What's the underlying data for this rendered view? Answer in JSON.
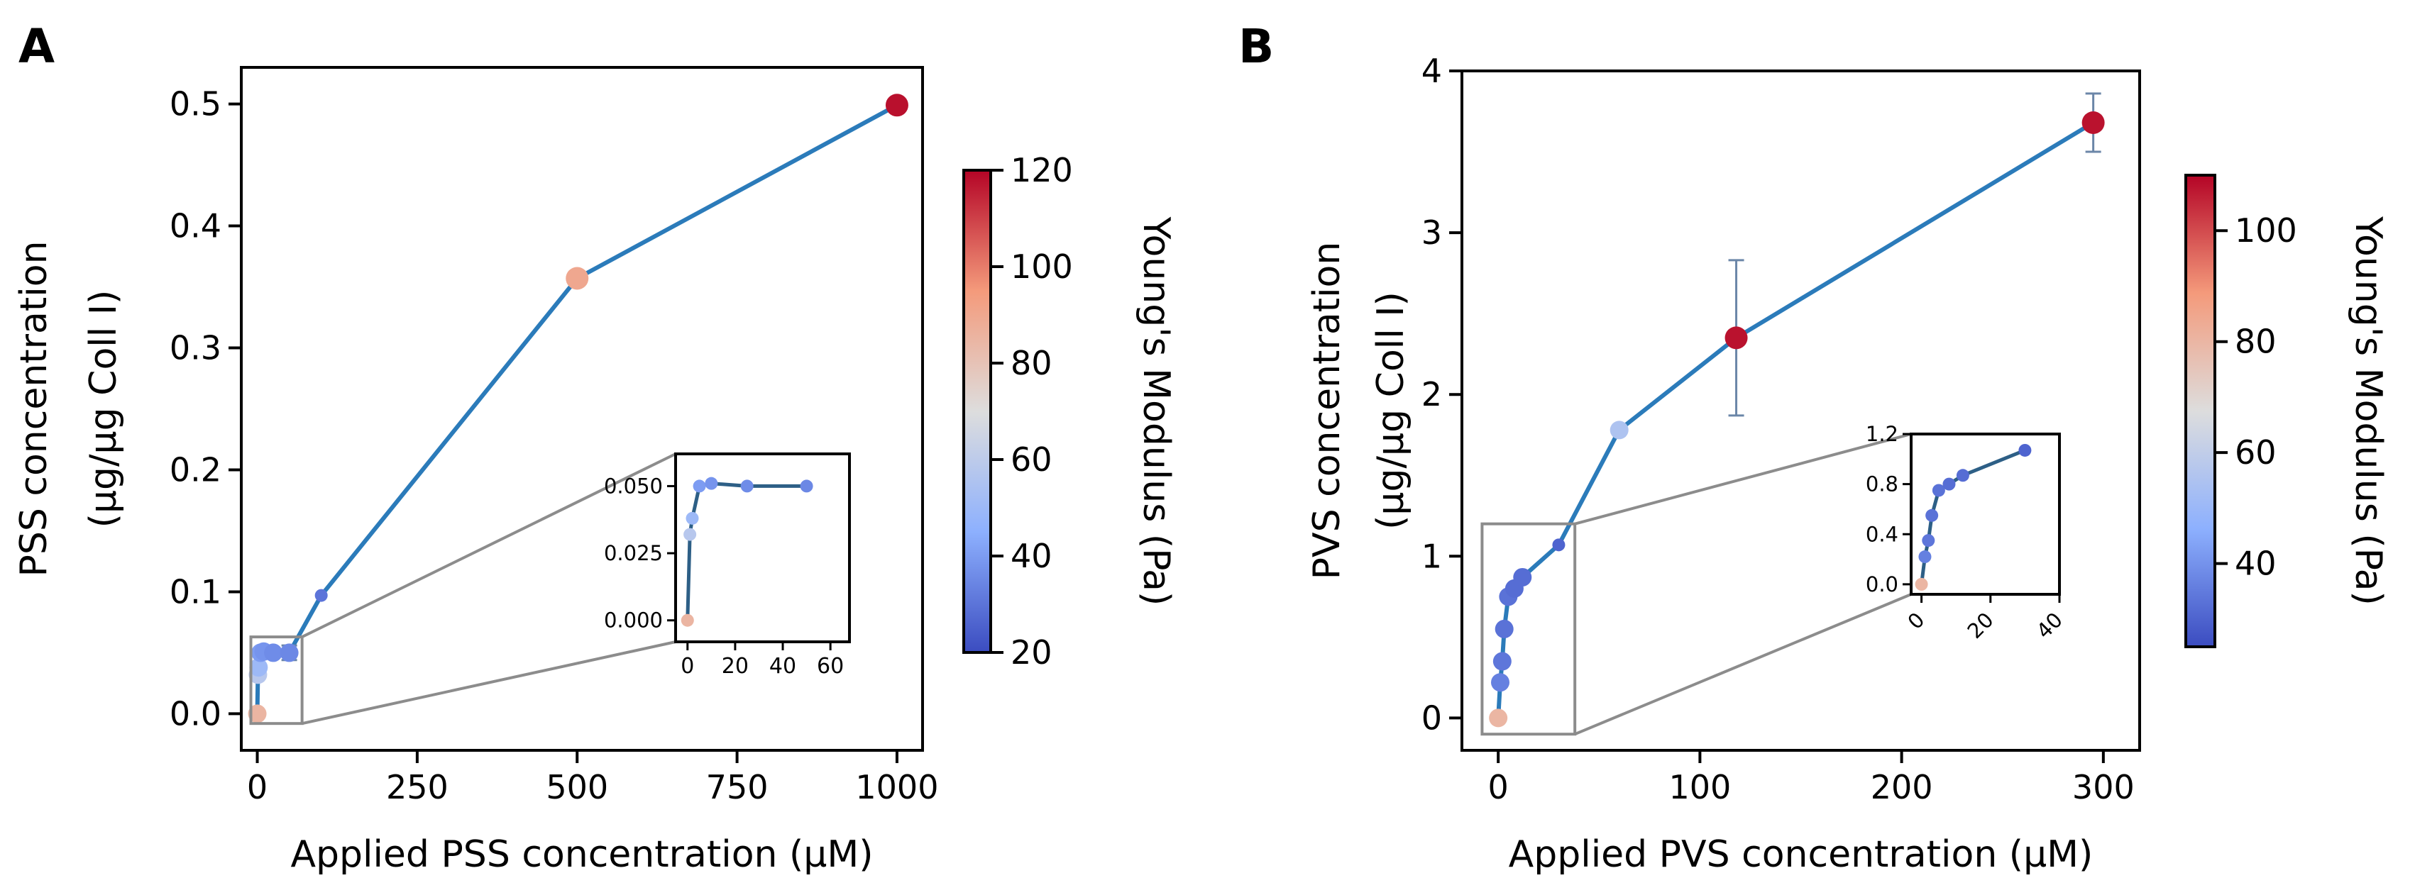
{
  "chart_data": [
    {
      "type": "line",
      "panel_label": "A",
      "title": "",
      "xlabel": "Applied PSS concentration (μM)",
      "ylabel_lines": [
        "PSS concentration",
        "(μg/μg Coll I)"
      ],
      "xlim": [
        -25,
        1040
      ],
      "ylim": [
        -0.03,
        0.53
      ],
      "x_ticks": [
        0,
        250,
        500,
        750,
        1000
      ],
      "x_tick_labels": [
        "0",
        "250",
        "500",
        "750",
        "1000"
      ],
      "y_ticks": [
        0.0,
        0.1,
        0.2,
        0.3,
        0.4,
        0.5
      ],
      "y_tick_labels": [
        "0.0",
        "0.1",
        "0.2",
        "0.3",
        "0.4",
        "0.5"
      ],
      "line_color": "#2b7bba",
      "series": [
        {
          "name": "PSS",
          "x": [
            0,
            1,
            2,
            5,
            10,
            25,
            50,
            100,
            500,
            1000
          ],
          "y": [
            0.0,
            0.032,
            0.038,
            0.05,
            0.051,
            0.05,
            0.05,
            0.097,
            0.357,
            0.499
          ],
          "err": [
            0,
            0,
            0,
            0,
            0,
            0,
            0.006,
            0,
            0,
            0
          ],
          "modulus": [
            85,
            58,
            50,
            40,
            38,
            36,
            35,
            30,
            90,
            118
          ],
          "marker_size": [
            2,
            2,
            2,
            2,
            2,
            2,
            2,
            1,
            3,
            3
          ]
        }
      ],
      "inset": {
        "source_box_x": [
          -10,
          70
        ],
        "source_box_y": [
          -0.008,
          0.063
        ],
        "xlim": [
          -5,
          68
        ],
        "ylim": [
          -0.008,
          0.062
        ],
        "x_ticks": [
          0,
          20,
          40,
          60
        ],
        "x_tick_labels": [
          "0",
          "20",
          "40",
          "60"
        ],
        "y_ticks": [
          0.0,
          0.025,
          0.05
        ],
        "y_tick_labels": [
          "0.000",
          "0.025",
          "0.050"
        ],
        "x_tick_rotation": 0,
        "series": {
          "x": [
            0,
            1,
            2,
            5,
            10,
            25,
            50
          ],
          "y": [
            0.0,
            0.032,
            0.038,
            0.05,
            0.051,
            0.05,
            0.05
          ],
          "modulus": [
            85,
            58,
            50,
            40,
            38,
            36,
            35
          ],
          "marker_size": [
            2,
            2,
            2,
            2,
            2,
            2,
            2
          ]
        }
      },
      "colorbar": {
        "label": "Young's Modulus (Pa)",
        "range": [
          20,
          120
        ],
        "ticks": [
          20,
          40,
          60,
          80,
          100,
          120
        ],
        "tick_labels": [
          "20",
          "40",
          "60",
          "80",
          "100",
          "120"
        ]
      }
    },
    {
      "type": "line",
      "panel_label": "B",
      "title": "",
      "xlabel": "Applied PVS concentration (μM)",
      "ylabel_lines": [
        "PVS concentration",
        "(μg/μg Coll I)"
      ],
      "xlim": [
        -18,
        318
      ],
      "ylim": [
        -0.2,
        4.0
      ],
      "x_ticks": [
        0,
        100,
        200,
        300
      ],
      "x_tick_labels": [
        "0",
        "100",
        "200",
        "300"
      ],
      "y_ticks": [
        0,
        1,
        2,
        3,
        4
      ],
      "y_tick_labels": [
        "0",
        "1",
        "2",
        "3",
        "4"
      ],
      "line_color": "#2b7bba",
      "series": [
        {
          "name": "PVS",
          "x": [
            0,
            1,
            2,
            3,
            5,
            8,
            12,
            30,
            60,
            118,
            295
          ],
          "y": [
            0.0,
            0.22,
            0.35,
            0.55,
            0.75,
            0.8,
            0.87,
            1.07,
            1.78,
            2.35,
            3.68
          ],
          "err": [
            0,
            0,
            0,
            0,
            0,
            0,
            0,
            0,
            0,
            0.48,
            0.18
          ],
          "modulus": [
            80,
            36,
            34,
            33,
            33,
            32,
            32,
            30,
            55,
            108,
            108
          ],
          "marker_size": [
            2,
            2,
            2,
            2,
            2,
            2,
            2,
            1,
            2,
            3,
            3
          ]
        }
      ],
      "inset": {
        "source_box_x": [
          -8,
          38
        ],
        "source_box_y": [
          -0.1,
          1.2
        ],
        "xlim": [
          -3,
          40
        ],
        "ylim": [
          -0.08,
          1.2
        ],
        "x_ticks": [
          0,
          20,
          40
        ],
        "x_tick_labels": [
          "0",
          "20",
          "40"
        ],
        "y_ticks": [
          0.0,
          0.4,
          0.8,
          1.2
        ],
        "y_tick_labels": [
          "0.0",
          "0.4",
          "0.8",
          "1.2"
        ],
        "x_tick_rotation": 45,
        "series": {
          "x": [
            0,
            1,
            2,
            3,
            5,
            8,
            12,
            30
          ],
          "y": [
            0.0,
            0.22,
            0.35,
            0.55,
            0.75,
            0.8,
            0.87,
            1.07
          ],
          "modulus": [
            80,
            36,
            34,
            33,
            33,
            32,
            32,
            30
          ],
          "marker_size": [
            2,
            2,
            2,
            2,
            2,
            2,
            2,
            2
          ]
        }
      },
      "colorbar": {
        "label": "Young's Modulus (Pa)",
        "range": [
          25,
          110
        ],
        "ticks": [
          40,
          60,
          80,
          100
        ],
        "tick_labels": [
          "40",
          "60",
          "80",
          "100"
        ]
      }
    }
  ]
}
